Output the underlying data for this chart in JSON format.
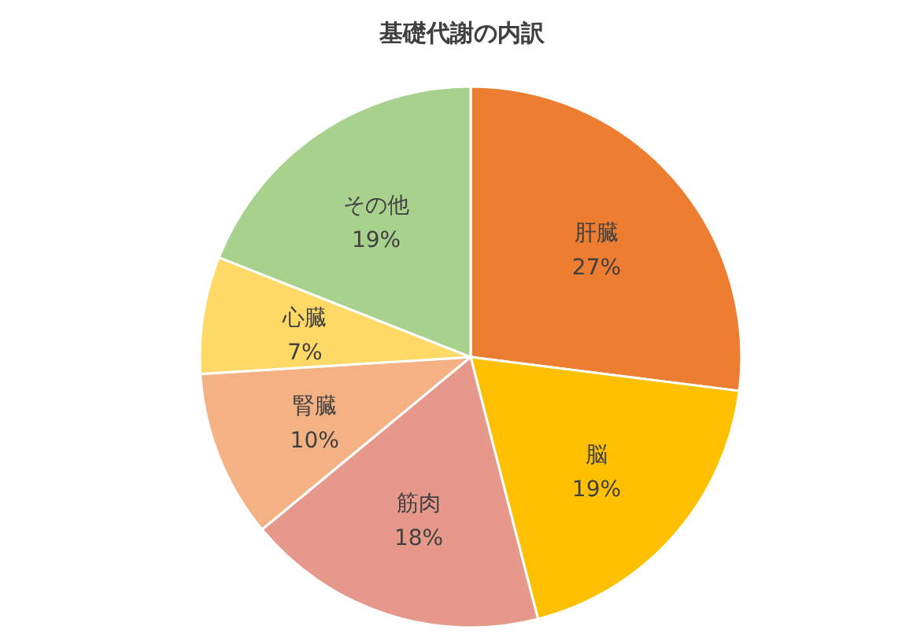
{
  "chart_data": {
    "type": "pie",
    "title": "基礎代謝の内訳",
    "categories": [
      "肝臓",
      "脳",
      "筋肉",
      "腎臓",
      "心臓",
      "その他"
    ],
    "values": [
      27,
      19,
      18,
      10,
      7,
      19
    ],
    "value_labels": [
      "27%",
      "19%",
      "18%",
      "10%",
      "7%",
      "19%"
    ],
    "colors": [
      "#ed7d31",
      "#ffc000",
      "#e6998a",
      "#f4b183",
      "#ffd966",
      "#a9d18e"
    ]
  }
}
